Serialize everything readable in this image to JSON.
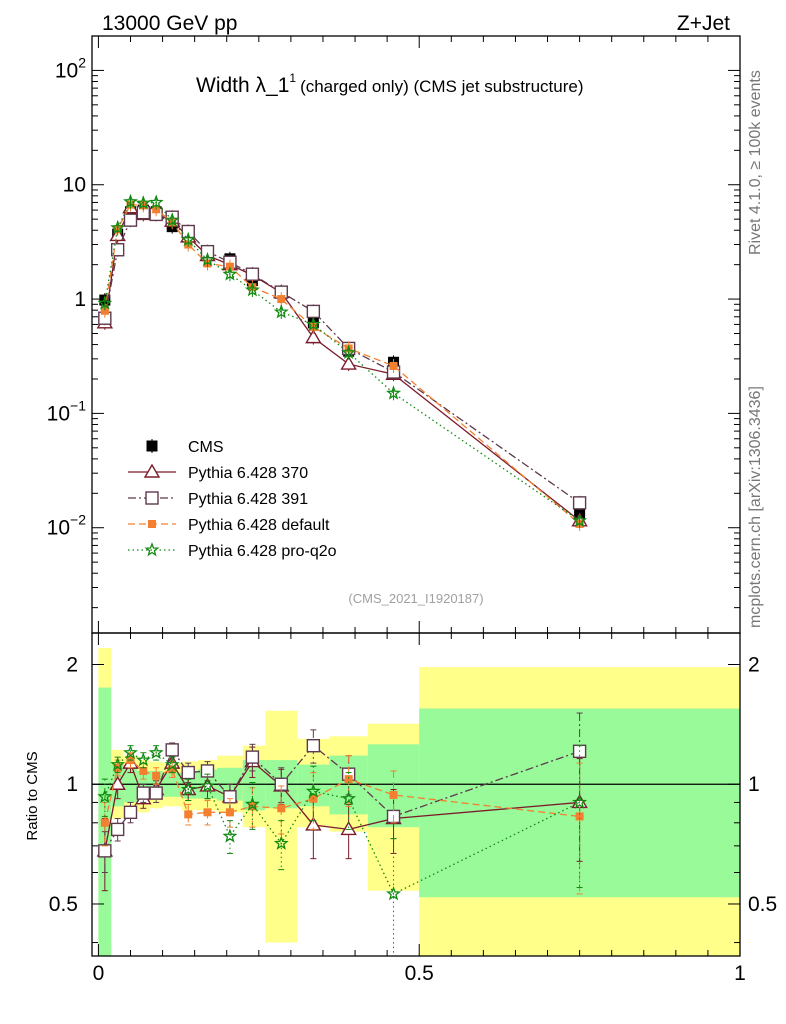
{
  "header": {
    "energy": "13000 GeV pp",
    "process": "Z+Jet",
    "title_main": "Width λ_1",
    "title_sup": "1",
    "title_sub": "(charged only) (CMS jet substructure)",
    "analysis": "(CMS_2021_I1920187)",
    "rivet": "Rivet 4.1.0, ≥ 100k events",
    "mcplots": "mcplots.cern.ch [arXiv:1306.3436]"
  },
  "ratio_ylabel": "Ratio to CMS",
  "chart_data": [
    {
      "type": "scatter",
      "name": "main",
      "title": "Width λ_1^1 (charged only) (CMS jet substructure)",
      "yscale": "log",
      "xlim": [
        -0.01,
        1.0
      ],
      "ylim": [
        0.0012,
        200
      ],
      "yticks": [
        {
          "v": 100,
          "base": "10",
          "exp": "2"
        },
        {
          "v": 10,
          "base": "10",
          "exp": ""
        },
        {
          "v": 1,
          "base": "1",
          "exp": ""
        },
        {
          "v": 0.1,
          "base": "10",
          "exp": "−1"
        },
        {
          "v": 0.01,
          "base": "10",
          "exp": "−2"
        }
      ],
      "x": [
        0.01,
        0.03,
        0.05,
        0.07,
        0.09,
        0.115,
        0.14,
        0.17,
        0.205,
        0.24,
        0.285,
        0.335,
        0.39,
        0.46,
        0.75
      ],
      "series": [
        {
          "name": "CMS",
          "color": "#000000",
          "marker": "square-filled",
          "line": "none",
          "values": [
            0.98,
            3.7,
            5.8,
            6.0,
            5.8,
            4.3,
            3.6,
            2.4,
            2.25,
            1.45,
            1.15,
            0.62,
            0.35,
            0.28,
            0.013
          ]
        },
        {
          "name": "Pythia 6.428 370",
          "color": "#7b1b2b",
          "marker": "triangle-open",
          "line": "solid",
          "values": [
            0.62,
            3.6,
            6.3,
            5.5,
            5.6,
            4.8,
            3.5,
            2.4,
            2.0,
            1.62,
            1.14,
            0.46,
            0.27,
            0.22,
            0.0115
          ]
        },
        {
          "name": "Pythia 6.428 391",
          "color": "#5e3a4e",
          "marker": "square-open",
          "line": "dashdot",
          "values": [
            0.68,
            2.7,
            4.9,
            5.7,
            5.5,
            5.2,
            3.9,
            2.6,
            2.1,
            1.65,
            1.15,
            0.78,
            0.37,
            0.23,
            0.0165
          ]
        },
        {
          "name": "Pythia 6.428 default",
          "color": "#f28030",
          "marker": "square-filled-small",
          "line": "dashed",
          "values": [
            0.79,
            4.1,
            6.7,
            6.6,
            6.1,
            4.7,
            3.0,
            2.05,
            1.92,
            1.27,
            1.0,
            0.57,
            0.37,
            0.26,
            0.0108
          ]
        },
        {
          "name": "Pythia 6.428 pro-q2o",
          "color": "#108a10",
          "marker": "star",
          "line": "dotted",
          "values": [
            0.92,
            4.2,
            7.1,
            6.9,
            7.0,
            4.9,
            3.3,
            2.2,
            1.65,
            1.2,
            0.77,
            0.6,
            0.34,
            0.15,
            0.0115
          ]
        }
      ]
    },
    {
      "type": "scatter",
      "name": "ratio",
      "ylabel": "Ratio to CMS",
      "ylim": [
        0.37,
        2.4
      ],
      "yscale": "log",
      "yticks": [
        {
          "v": 0.5,
          "label": "0.5"
        },
        {
          "v": 1,
          "label": "1"
        },
        {
          "v": 2,
          "label": "2"
        }
      ],
      "xticks": [
        {
          "v": 0,
          "label": "0"
        },
        {
          "v": 0.5,
          "label": "0.5"
        },
        {
          "v": 1,
          "label": "1"
        }
      ],
      "xlim": [
        -0.01,
        1.0
      ],
      "x": [
        0.01,
        0.03,
        0.05,
        0.07,
        0.09,
        0.115,
        0.14,
        0.17,
        0.205,
        0.24,
        0.285,
        0.335,
        0.39,
        0.46,
        0.75
      ],
      "bands": [
        {
          "x0": 0.0,
          "x1": 0.02,
          "y_lo": 0.35,
          "y_hi": 2.2,
          "g_lo": 0.35,
          "g_hi": 1.75
        },
        {
          "x0": 0.02,
          "x1": 0.04,
          "y_lo": 0.82,
          "y_hi": 1.22,
          "g_lo": 0.88,
          "g_hi": 1.12
        },
        {
          "x0": 0.04,
          "x1": 0.06,
          "y_lo": 0.85,
          "y_hi": 1.18,
          "g_lo": 0.9,
          "g_hi": 1.1
        },
        {
          "x0": 0.06,
          "x1": 0.08,
          "y_lo": 0.85,
          "y_hi": 1.15,
          "g_lo": 0.9,
          "g_hi": 1.08
        },
        {
          "x0": 0.08,
          "x1": 0.1,
          "y_lo": 0.87,
          "y_hi": 1.14,
          "g_lo": 0.92,
          "g_hi": 1.08
        },
        {
          "x0": 0.1,
          "x1": 0.13,
          "y_lo": 0.88,
          "y_hi": 1.13,
          "g_lo": 0.93,
          "g_hi": 1.07
        },
        {
          "x0": 0.13,
          "x1": 0.155,
          "y_lo": 0.86,
          "y_hi": 1.14,
          "g_lo": 0.92,
          "g_hi": 1.08
        },
        {
          "x0": 0.155,
          "x1": 0.185,
          "y_lo": 0.86,
          "y_hi": 1.15,
          "g_lo": 0.92,
          "g_hi": 1.09
        },
        {
          "x0": 0.185,
          "x1": 0.225,
          "y_lo": 0.85,
          "y_hi": 1.18,
          "g_lo": 0.91,
          "g_hi": 1.1
        },
        {
          "x0": 0.225,
          "x1": 0.26,
          "y_lo": 0.78,
          "y_hi": 1.25,
          "g_lo": 0.86,
          "g_hi": 1.15
        },
        {
          "x0": 0.26,
          "x1": 0.31,
          "y_lo": 0.4,
          "y_hi": 1.53,
          "g_lo": 0.87,
          "g_hi": 1.15
        },
        {
          "x0": 0.31,
          "x1": 0.36,
          "y_lo": 0.78,
          "y_hi": 1.3,
          "g_lo": 0.88,
          "g_hi": 1.12
        },
        {
          "x0": 0.36,
          "x1": 0.42,
          "y_lo": 0.76,
          "y_hi": 1.32,
          "g_lo": 0.84,
          "g_hi": 1.18
        },
        {
          "x0": 0.42,
          "x1": 0.5,
          "y_lo": 0.54,
          "y_hi": 1.42,
          "g_lo": 0.78,
          "g_hi": 1.26
        },
        {
          "x0": 0.5,
          "x1": 1.0,
          "y_lo": 0.35,
          "y_hi": 1.97,
          "g_lo": 0.52,
          "g_hi": 1.55
        }
      ],
      "series": [
        {
          "name": "Pythia 6.428 370",
          "color": "#7b1b2b",
          "marker": "triangle-open",
          "line": "solid",
          "values": [
            0.68,
            1.0,
            1.13,
            0.92,
            0.97,
            1.13,
            0.97,
            0.99,
            0.93,
            1.14,
            0.99,
            0.79,
            0.77,
            0.82,
            0.9
          ],
          "err": [
            0.14,
            0.08,
            0.06,
            0.05,
            0.05,
            0.06,
            0.06,
            0.07,
            0.07,
            0.1,
            0.1,
            0.14,
            0.12,
            0.15,
            0.26
          ]
        },
        {
          "name": "Pythia 6.428 391",
          "color": "#5e3a4e",
          "marker": "square-open",
          "line": "dashdot",
          "values": [
            0.68,
            0.77,
            0.85,
            0.95,
            0.95,
            1.22,
            1.07,
            1.08,
            0.93,
            1.17,
            1.0,
            1.25,
            1.06,
            0.83,
            1.21
          ],
          "err": [
            0.08,
            0.05,
            0.05,
            0.05,
            0.05,
            0.05,
            0.06,
            0.06,
            0.07,
            0.09,
            0.1,
            0.12,
            0.12,
            0.1,
            0.3
          ]
        },
        {
          "name": "Pythia 6.428 default",
          "color": "#f28030",
          "marker": "square-filled-small",
          "line": "dashed",
          "values": [
            0.8,
            1.1,
            1.15,
            1.08,
            1.05,
            1.09,
            0.84,
            0.85,
            0.85,
            0.88,
            0.87,
            0.92,
            1.03,
            0.94,
            0.83
          ],
          "err": [
            0.1,
            0.05,
            0.05,
            0.05,
            0.05,
            0.05,
            0.05,
            0.06,
            0.07,
            0.1,
            0.12,
            0.15,
            0.15,
            0.14,
            0.3
          ]
        },
        {
          "name": "Pythia 6.428 pro-q2o",
          "color": "#108a10",
          "marker": "star",
          "line": "dotted",
          "values": [
            0.93,
            1.12,
            1.2,
            1.15,
            1.2,
            1.12,
            0.97,
            0.99,
            0.74,
            0.89,
            0.71,
            0.96,
            0.92,
            0.53,
            0.9
          ],
          "err": [
            0.1,
            0.05,
            0.05,
            0.05,
            0.05,
            0.05,
            0.06,
            0.07,
            0.07,
            0.12,
            0.1,
            0.15,
            0.15,
            0.2,
            0.35
          ]
        }
      ]
    }
  ]
}
